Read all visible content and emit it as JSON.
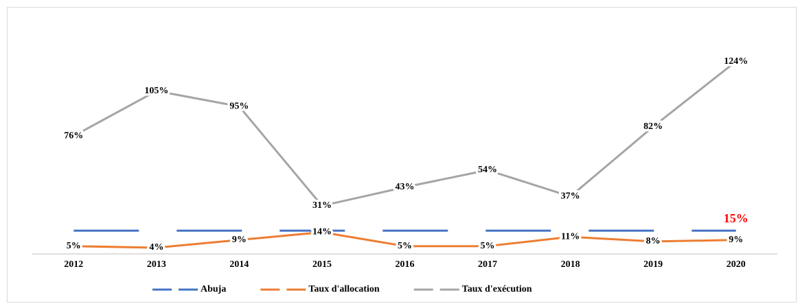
{
  "chart_data": {
    "type": "line",
    "categories": [
      "2012",
      "2013",
      "2014",
      "2015",
      "2016",
      "2017",
      "2018",
      "2019",
      "2020"
    ],
    "ylim": [
      0,
      130
    ],
    "legend": "bottom",
    "series": [
      {
        "name": "Abuja",
        "color": "#4472c4",
        "dashed": true,
        "values": [
          15,
          15,
          15,
          15,
          15,
          15,
          15,
          15,
          15
        ],
        "value_labels": [
          null,
          null,
          null,
          null,
          null,
          null,
          null,
          null,
          "15%"
        ],
        "label_color": "#ff0000"
      },
      {
        "name": "Taux d'allocation",
        "color": "#ed7d31",
        "values": [
          5,
          4,
          9,
          14,
          5,
          5,
          11,
          8,
          9
        ],
        "value_labels": [
          "5%",
          "4%",
          "9%",
          "14%",
          "5%",
          "5%",
          "11%",
          "8%",
          "9%"
        ]
      },
      {
        "name": "Taux d'exécution",
        "color": "#a5a5a5",
        "values": [
          76,
          105,
          95,
          31,
          43,
          54,
          37,
          82,
          124
        ],
        "value_labels": [
          "76%",
          "105%",
          "95%",
          "31%",
          "43%",
          "54%",
          "37%",
          "82%",
          "124%"
        ]
      }
    ]
  }
}
